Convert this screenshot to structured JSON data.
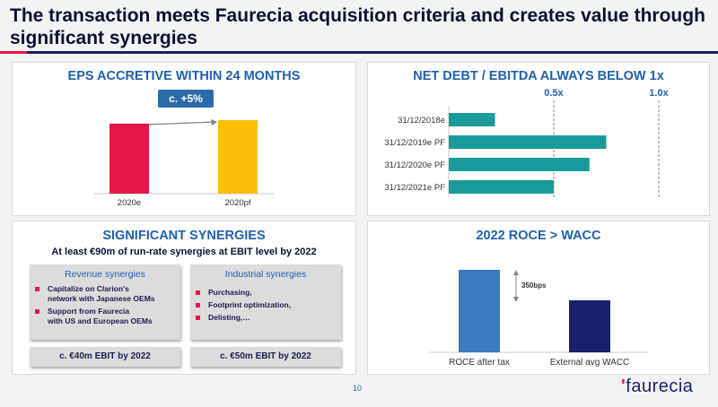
{
  "title": "The transaction meets Faurecia acquisition criteria and creates value through significant synergies",
  "colors": {
    "accent_red": "#e5174a",
    "navy": "#1a1f6b",
    "blue_title": "#1f5fb0",
    "teal": "#1a9b9b",
    "eps_red": "#e5174a",
    "eps_yellow": "#fbbf0a",
    "roce_blue": "#3b7bbf",
    "wacc_navy": "#1a1f6b"
  },
  "eps": {
    "title": "EPS ACCRETIVE WITHIN 24 MONTHS",
    "callout": "c. +5%",
    "chart_data": {
      "type": "bar",
      "categories": [
        "2020e",
        "2020pf"
      ],
      "values": [
        100,
        105
      ],
      "title": "EPS ACCRETIVE WITHIN 24 MONTHS"
    }
  },
  "net_debt": {
    "title": "NET DEBT / EBITDA ALWAYS BELOW 1x",
    "marker1": "0.5x",
    "marker2": "1.0x",
    "chart_data": {
      "type": "bar",
      "orientation": "horizontal",
      "categories": [
        "31/12/2018e",
        "31/12/2019e PF",
        "31/12/2020e PF",
        "31/12/2021e PF"
      ],
      "values": [
        0.22,
        0.75,
        0.67,
        0.5
      ],
      "reference_lines": [
        0.5,
        1.0
      ]
    }
  },
  "synergies": {
    "title": "SIGNIFICANT SYNERGIES",
    "subtitle": "At least €90m of run-rate synergies at EBIT level by 2022",
    "revenue": {
      "title": "Revenue synergies",
      "items": [
        "Capitalize on Clarion's\nnetwork with Japanese OEMs",
        "Support from Faurecia\nwith US and European OEMs"
      ],
      "footer": "c. €40m EBIT by 2022"
    },
    "industrial": {
      "title": "Industrial synergies",
      "items": [
        "Purchasing,",
        "Footprint optimization,",
        "Delisting,…"
      ],
      "footer": "c. €50m EBIT by 2022"
    }
  },
  "roce": {
    "title": "2022 ROCE > WACC",
    "bps_label": "350bps",
    "chart_data": {
      "type": "bar",
      "categories": [
        "ROCE after tax",
        "External avg WACC"
      ],
      "values": [
        100,
        63
      ]
    }
  },
  "page_number": "10",
  "logo": "faurecia"
}
